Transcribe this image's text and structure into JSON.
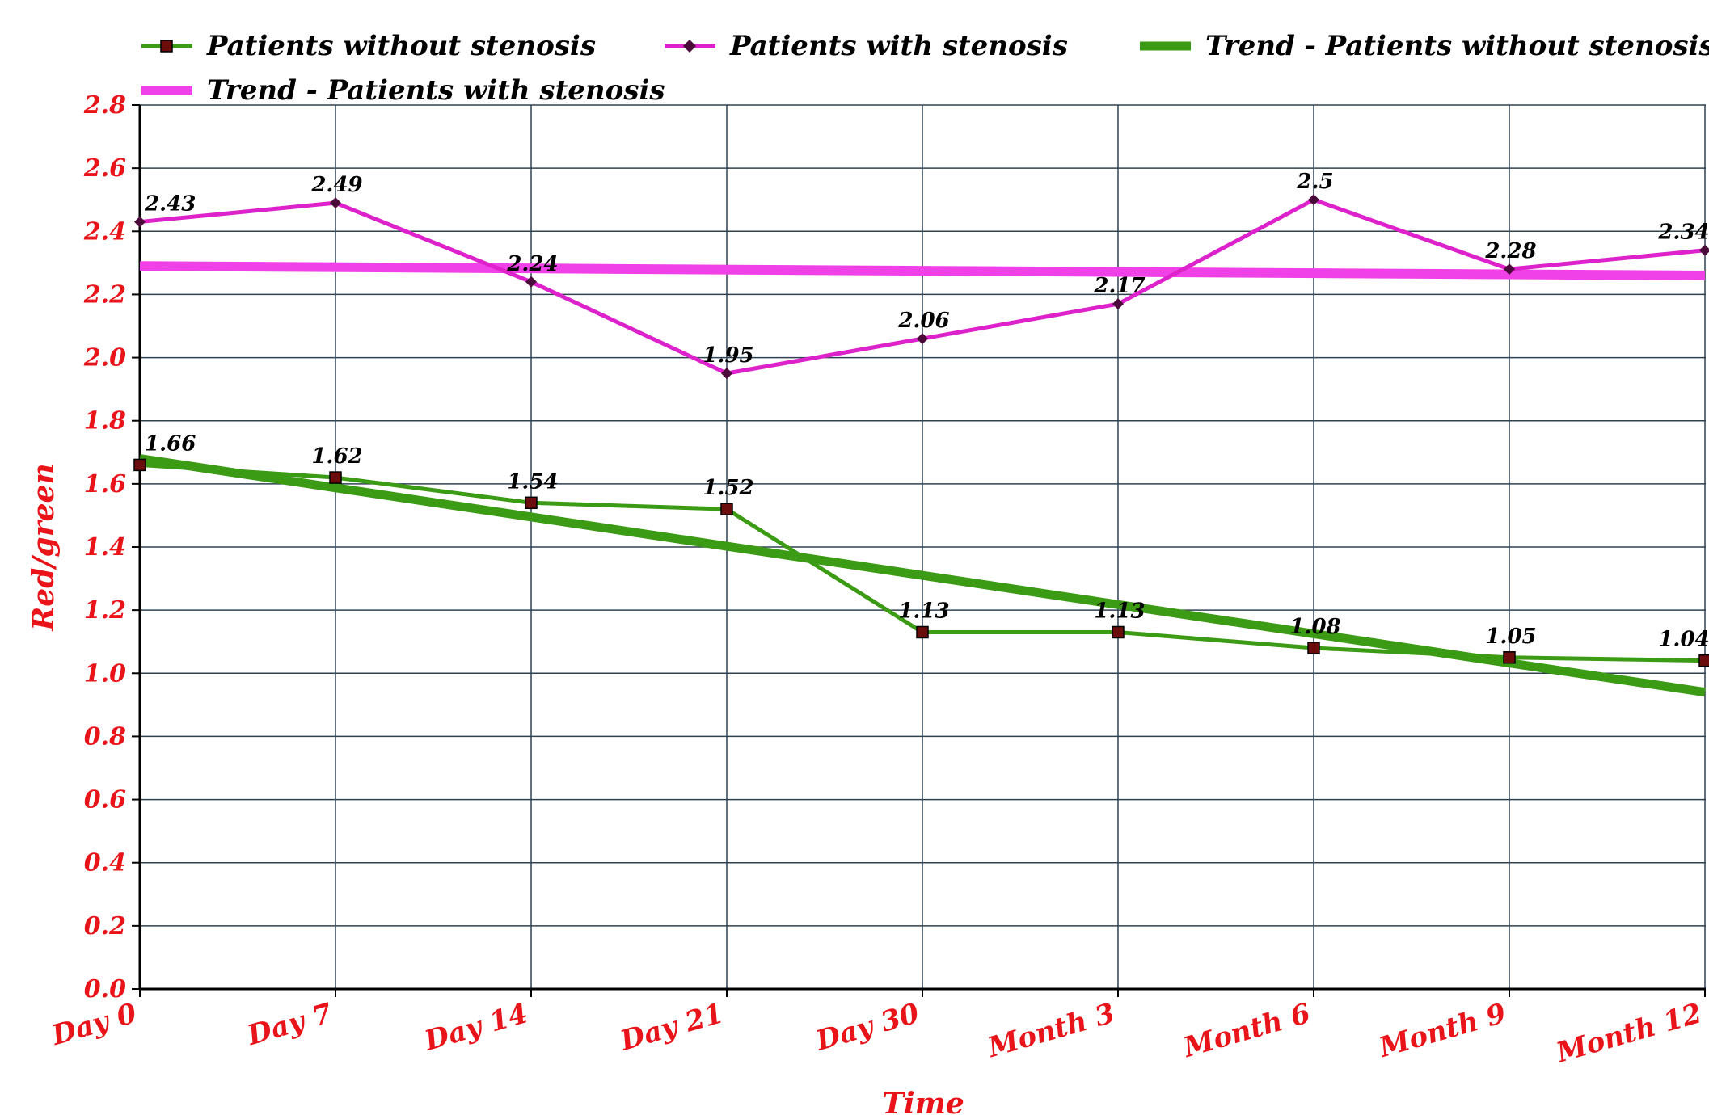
{
  "chart_data": {
    "type": "line",
    "title": "",
    "xlabel": "Time",
    "ylabel": "Red/green",
    "categories": [
      "Day 0",
      "Day 7",
      "Day 14",
      "Day 21",
      "Day 30",
      "Month 3",
      "Month 6",
      "Month 9",
      "Month 12"
    ],
    "ylim": [
      0.0,
      2.8
    ],
    "yticks": [
      "0.0",
      "0.2",
      "0.4",
      "0.6",
      "0.8",
      "1.0",
      "1.2",
      "1.4",
      "1.6",
      "1.8",
      "2.0",
      "2.2",
      "2.4",
      "2.6",
      "2.8"
    ],
    "grid": true,
    "legend_position": "top",
    "series": [
      {
        "name": "Patients without stenosis",
        "values": [
          1.66,
          1.62,
          1.54,
          1.52,
          1.13,
          1.13,
          1.08,
          1.05,
          1.04
        ],
        "labels": [
          "1.66",
          "1.62",
          "1.54",
          "1.52",
          "1.13",
          "1.13",
          "1.08",
          "1.05",
          "1.04"
        ],
        "color": "#3c9b14",
        "marker": "square"
      },
      {
        "name": "Patients with stenosis",
        "values": [
          2.43,
          2.49,
          2.24,
          1.95,
          2.06,
          2.17,
          2.5,
          2.28,
          2.34
        ],
        "labels": [
          "2.43",
          "2.49",
          "2.24",
          "1.95",
          "2.06",
          "2.17",
          "2.5",
          "2.28",
          "2.34"
        ],
        "color": "#dd22cc",
        "marker": "diamond"
      }
    ],
    "trends": [
      {
        "name": "Trend - Patients without stenosis",
        "start": 1.68,
        "end": 0.94,
        "color": "#3c9b14"
      },
      {
        "name": "Trend - Patients with stenosis",
        "start": 2.29,
        "end": 2.26,
        "color": "#f040e8"
      }
    ]
  }
}
